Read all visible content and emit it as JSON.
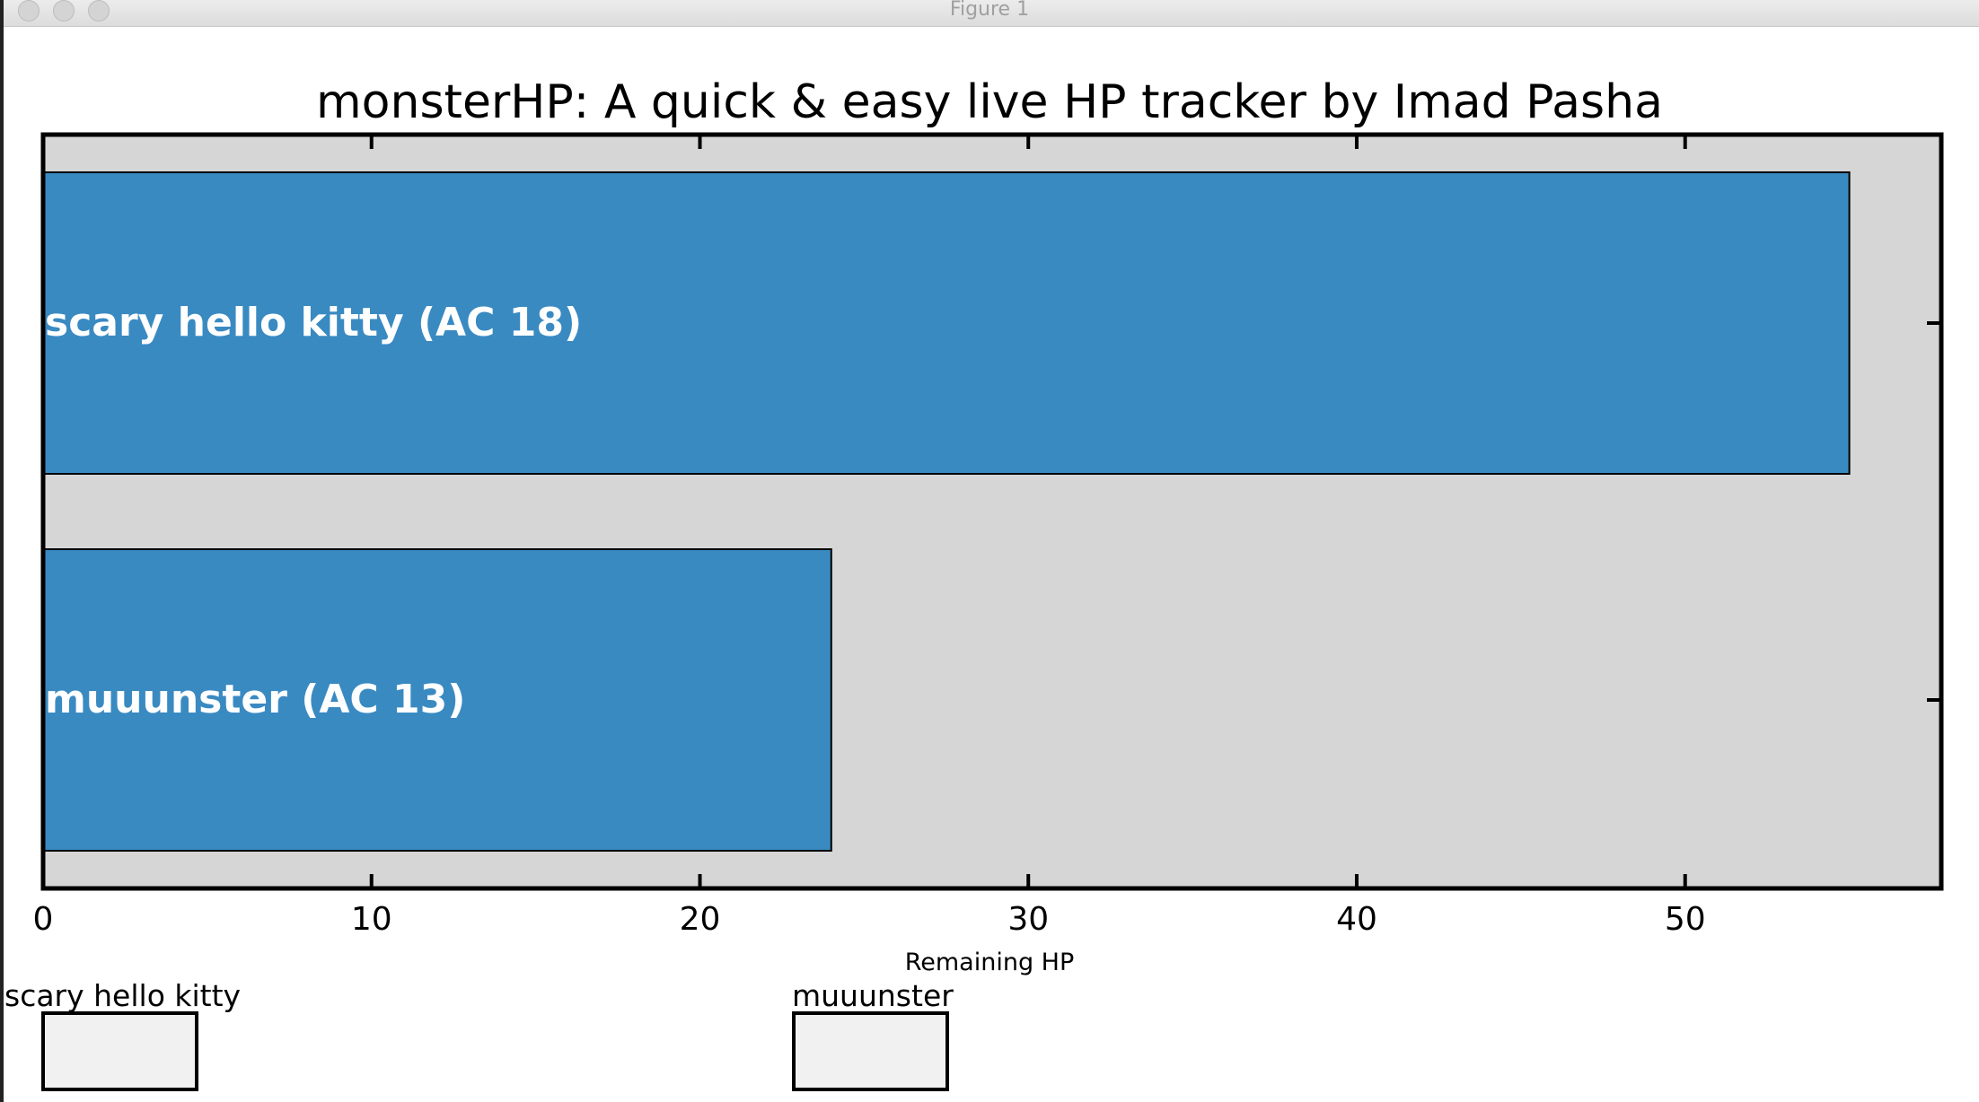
{
  "window": {
    "title": "Figure 1"
  },
  "chart_data": {
    "type": "bar",
    "orientation": "horizontal",
    "title": "monsterHP: A quick & easy live HP tracker by Imad Pasha",
    "xlabel": "Remaining HP",
    "ylabel": "",
    "xlim": [
      0,
      57.8
    ],
    "xticks": [
      "0",
      "10",
      "20",
      "30",
      "40",
      "50"
    ],
    "categories": [
      "scary hello kitty (AC 18)",
      "muuunster (AC 13)"
    ],
    "values": [
      55,
      24
    ],
    "bar_color": "#3a8ac2",
    "background_color": "#d6d6d6",
    "grid": false,
    "legend": "none"
  },
  "inputs": [
    {
      "label": "scary hello kitty",
      "value": ""
    },
    {
      "label": "muuunster",
      "value": ""
    }
  ]
}
